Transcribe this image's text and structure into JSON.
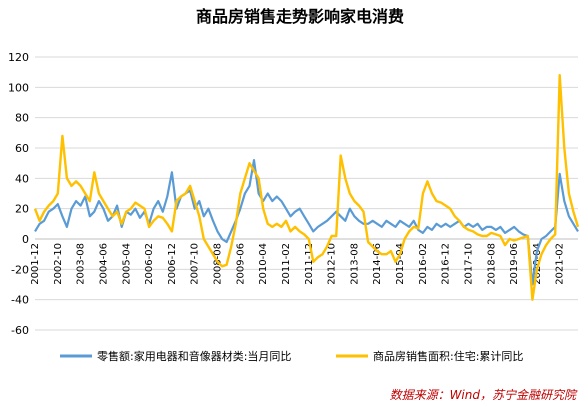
{
  "chart_data": {
    "type": "line",
    "title": "商品房销售走势影响家电消费",
    "source": "数据来源：Wind，苏宁金融研究院",
    "xlabel": "",
    "ylabel": "",
    "ylim": [
      -60,
      120
    ],
    "yticks": [
      -60,
      -40,
      -20,
      0,
      20,
      40,
      60,
      80,
      100,
      120
    ],
    "grid": true,
    "legend": "bottom",
    "x_range": [
      "2001-12",
      "2021-10"
    ],
    "x_tick_labels": [
      "2001-12",
      "2002-10",
      "2003-08",
      "2004-06",
      "2005-04",
      "2006-02",
      "2006-12",
      "2007-10",
      "2008-08",
      "2009-06",
      "2010-04",
      "2011-02",
      "2011-12",
      "2012-10",
      "2013-08",
      "2014-06",
      "2015-04",
      "2016-02",
      "2016-12",
      "2017-10",
      "2018-08",
      "2019-06",
      "2020-04",
      "2021-02"
    ],
    "series": [
      {
        "name": "零售额:家用电器和音像器材类:当月同比",
        "color": "#5b9bd5",
        "points": [
          [
            "2001-12",
            5
          ],
          [
            "2002-02",
            10
          ],
          [
            "2002-04",
            12
          ],
          [
            "2002-06",
            18
          ],
          [
            "2002-08",
            20
          ],
          [
            "2002-10",
            23
          ],
          [
            "2002-12",
            15
          ],
          [
            "2003-02",
            8
          ],
          [
            "2003-04",
            20
          ],
          [
            "2003-06",
            25
          ],
          [
            "2003-08",
            22
          ],
          [
            "2003-10",
            28
          ],
          [
            "2003-12",
            15
          ],
          [
            "2004-02",
            18
          ],
          [
            "2004-04",
            25
          ],
          [
            "2004-06",
            20
          ],
          [
            "2004-08",
            12
          ],
          [
            "2004-10",
            15
          ],
          [
            "2004-12",
            22
          ],
          [
            "2005-02",
            8
          ],
          [
            "2005-04",
            18
          ],
          [
            "2005-06",
            16
          ],
          [
            "2005-08",
            20
          ],
          [
            "2005-10",
            14
          ],
          [
            "2005-12",
            18
          ],
          [
            "2006-02",
            10
          ],
          [
            "2006-04",
            20
          ],
          [
            "2006-06",
            25
          ],
          [
            "2006-08",
            18
          ],
          [
            "2006-10",
            28
          ],
          [
            "2006-12",
            44
          ],
          [
            "2007-02",
            20
          ],
          [
            "2007-04",
            28
          ],
          [
            "2007-06",
            30
          ],
          [
            "2007-08",
            32
          ],
          [
            "2007-10",
            20
          ],
          [
            "2007-12",
            25
          ],
          [
            "2008-02",
            15
          ],
          [
            "2008-04",
            20
          ],
          [
            "2008-06",
            12
          ],
          [
            "2008-08",
            5
          ],
          [
            "2008-10",
            0
          ],
          [
            "2008-12",
            -2
          ],
          [
            "2009-02",
            5
          ],
          [
            "2009-04",
            12
          ],
          [
            "2009-06",
            20
          ],
          [
            "2009-08",
            30
          ],
          [
            "2009-10",
            35
          ],
          [
            "2009-12",
            52
          ],
          [
            "2010-02",
            30
          ],
          [
            "2010-04",
            25
          ],
          [
            "2010-06",
            30
          ],
          [
            "2010-08",
            25
          ],
          [
            "2010-10",
            28
          ],
          [
            "2010-12",
            25
          ],
          [
            "2011-02",
            20
          ],
          [
            "2011-04",
            15
          ],
          [
            "2011-06",
            18
          ],
          [
            "2011-08",
            20
          ],
          [
            "2011-10",
            15
          ],
          [
            "2011-12",
            10
          ],
          [
            "2012-02",
            5
          ],
          [
            "2012-04",
            8
          ],
          [
            "2012-06",
            10
          ],
          [
            "2012-08",
            12
          ],
          [
            "2012-10",
            15
          ],
          [
            "2012-12",
            18
          ],
          [
            "2013-02",
            15
          ],
          [
            "2013-04",
            12
          ],
          [
            "2013-06",
            20
          ],
          [
            "2013-08",
            15
          ],
          [
            "2013-10",
            12
          ],
          [
            "2013-12",
            10
          ],
          [
            "2014-02",
            10
          ],
          [
            "2014-04",
            12
          ],
          [
            "2014-06",
            10
          ],
          [
            "2014-08",
            8
          ],
          [
            "2014-10",
            12
          ],
          [
            "2014-12",
            10
          ],
          [
            "2015-02",
            8
          ],
          [
            "2015-04",
            12
          ],
          [
            "2015-06",
            10
          ],
          [
            "2015-08",
            8
          ],
          [
            "2015-10",
            12
          ],
          [
            "2015-12",
            6
          ],
          [
            "2016-02",
            4
          ],
          [
            "2016-04",
            8
          ],
          [
            "2016-06",
            6
          ],
          [
            "2016-08",
            10
          ],
          [
            "2016-10",
            8
          ],
          [
            "2016-12",
            10
          ],
          [
            "2017-02",
            8
          ],
          [
            "2017-04",
            10
          ],
          [
            "2017-06",
            12
          ],
          [
            "2017-08",
            8
          ],
          [
            "2017-10",
            10
          ],
          [
            "2017-12",
            8
          ],
          [
            "2018-02",
            10
          ],
          [
            "2018-04",
            6
          ],
          [
            "2018-06",
            8
          ],
          [
            "2018-08",
            8
          ],
          [
            "2018-10",
            6
          ],
          [
            "2018-12",
            8
          ],
          [
            "2019-02",
            4
          ],
          [
            "2019-04",
            6
          ],
          [
            "2019-06",
            8
          ],
          [
            "2019-08",
            5
          ],
          [
            "2019-10",
            3
          ],
          [
            "2019-12",
            2
          ],
          [
            "2020-02",
            -30
          ],
          [
            "2020-04",
            -8
          ],
          [
            "2020-06",
            0
          ],
          [
            "2020-08",
            2
          ],
          [
            "2020-10",
            5
          ],
          [
            "2020-12",
            8
          ],
          [
            "2021-02",
            43
          ],
          [
            "2021-04",
            25
          ],
          [
            "2021-06",
            15
          ],
          [
            "2021-08",
            10
          ],
          [
            "2021-10",
            5
          ]
        ]
      },
      {
        "name": "商品房销售面积:住宅:累计同比",
        "color": "#ffc000",
        "points": [
          [
            "2001-12",
            20
          ],
          [
            "2002-02",
            12
          ],
          [
            "2002-04",
            18
          ],
          [
            "2002-06",
            22
          ],
          [
            "2002-08",
            25
          ],
          [
            "2002-10",
            30
          ],
          [
            "2002-12",
            68
          ],
          [
            "2003-02",
            40
          ],
          [
            "2003-04",
            35
          ],
          [
            "2003-06",
            38
          ],
          [
            "2003-08",
            35
          ],
          [
            "2003-10",
            30
          ],
          [
            "2003-12",
            25
          ],
          [
            "2004-02",
            44
          ],
          [
            "2004-04",
            30
          ],
          [
            "2004-06",
            25
          ],
          [
            "2004-08",
            20
          ],
          [
            "2004-10",
            15
          ],
          [
            "2004-12",
            18
          ],
          [
            "2005-02",
            10
          ],
          [
            "2005-04",
            18
          ],
          [
            "2005-06",
            20
          ],
          [
            "2005-08",
            24
          ],
          [
            "2005-10",
            22
          ],
          [
            "2005-12",
            20
          ],
          [
            "2006-02",
            8
          ],
          [
            "2006-04",
            12
          ],
          [
            "2006-06",
            15
          ],
          [
            "2006-08",
            14
          ],
          [
            "2006-10",
            10
          ],
          [
            "2006-12",
            5
          ],
          [
            "2007-02",
            25
          ],
          [
            "2007-04",
            28
          ],
          [
            "2007-06",
            30
          ],
          [
            "2007-08",
            35
          ],
          [
            "2007-10",
            25
          ],
          [
            "2007-12",
            15
          ],
          [
            "2008-02",
            0
          ],
          [
            "2008-04",
            -5
          ],
          [
            "2008-06",
            -10
          ],
          [
            "2008-08",
            -15
          ],
          [
            "2008-10",
            -18
          ],
          [
            "2008-12",
            -17
          ],
          [
            "2009-02",
            -5
          ],
          [
            "2009-04",
            10
          ],
          [
            "2009-06",
            30
          ],
          [
            "2009-08",
            40
          ],
          [
            "2009-10",
            50
          ],
          [
            "2009-12",
            45
          ],
          [
            "2010-02",
            40
          ],
          [
            "2010-04",
            20
          ],
          [
            "2010-06",
            10
          ],
          [
            "2010-08",
            8
          ],
          [
            "2010-10",
            10
          ],
          [
            "2010-12",
            8
          ],
          [
            "2011-02",
            12
          ],
          [
            "2011-04",
            5
          ],
          [
            "2011-06",
            8
          ],
          [
            "2011-08",
            5
          ],
          [
            "2011-10",
            3
          ],
          [
            "2011-12",
            0
          ],
          [
            "2012-02",
            -15
          ],
          [
            "2012-04",
            -12
          ],
          [
            "2012-06",
            -10
          ],
          [
            "2012-08",
            -5
          ],
          [
            "2012-10",
            2
          ],
          [
            "2012-12",
            2
          ],
          [
            "2013-02",
            55
          ],
          [
            "2013-04",
            40
          ],
          [
            "2013-06",
            30
          ],
          [
            "2013-08",
            25
          ],
          [
            "2013-10",
            22
          ],
          [
            "2013-12",
            18
          ],
          [
            "2014-02",
            -2
          ],
          [
            "2014-04",
            -5
          ],
          [
            "2014-06",
            -8
          ],
          [
            "2014-08",
            -10
          ],
          [
            "2014-10",
            -10
          ],
          [
            "2014-12",
            -8
          ],
          [
            "2015-02",
            -15
          ],
          [
            "2015-04",
            -10
          ],
          [
            "2015-06",
            0
          ],
          [
            "2015-08",
            5
          ],
          [
            "2015-10",
            8
          ],
          [
            "2015-12",
            7
          ],
          [
            "2016-02",
            30
          ],
          [
            "2016-04",
            38
          ],
          [
            "2016-06",
            30
          ],
          [
            "2016-08",
            25
          ],
          [
            "2016-10",
            24
          ],
          [
            "2016-12",
            22
          ],
          [
            "2017-02",
            20
          ],
          [
            "2017-04",
            15
          ],
          [
            "2017-06",
            12
          ],
          [
            "2017-08",
            8
          ],
          [
            "2017-10",
            6
          ],
          [
            "2017-12",
            5
          ],
          [
            "2018-02",
            3
          ],
          [
            "2018-04",
            2
          ],
          [
            "2018-06",
            2
          ],
          [
            "2018-08",
            4
          ],
          [
            "2018-10",
            3
          ],
          [
            "2018-12",
            2
          ],
          [
            "2019-02",
            -4
          ],
          [
            "2019-04",
            0
          ],
          [
            "2019-06",
            -1
          ],
          [
            "2019-08",
            0
          ],
          [
            "2019-10",
            1
          ],
          [
            "2019-12",
            2
          ],
          [
            "2020-02",
            -40
          ],
          [
            "2020-04",
            -20
          ],
          [
            "2020-06",
            -10
          ],
          [
            "2020-08",
            -4
          ],
          [
            "2020-10",
            0
          ],
          [
            "2020-12",
            3
          ],
          [
            "2021-02",
            108
          ],
          [
            "2021-04",
            60
          ],
          [
            "2021-06",
            30
          ],
          [
            "2021-08",
            18
          ],
          [
            "2021-10",
            8
          ]
        ]
      }
    ]
  }
}
